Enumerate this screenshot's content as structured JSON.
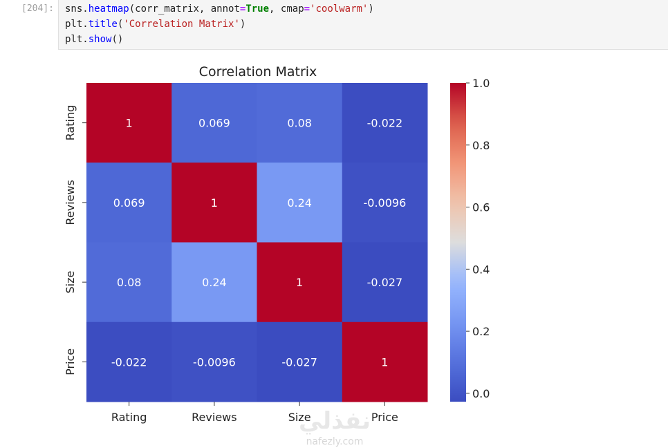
{
  "prompt": "[204]:",
  "code": {
    "line1": {
      "a": "sns.",
      "b": "heatmap",
      "c": "(corr_matrix, annot",
      "d": "=",
      "e": "True",
      "f": ", cmap",
      "g": "=",
      "h": "'coolwarm'",
      "i": ")"
    },
    "line2": {
      "a": "plt.",
      "b": "title",
      "c": "(",
      "d": "'Correlation Matrix'",
      "e": ")"
    },
    "line3": {
      "a": "plt.",
      "b": "show",
      "c": "()"
    }
  },
  "watermark": {
    "logo_text": "نفذلي",
    "url": "nafezly.com"
  },
  "chart_data": {
    "type": "heatmap",
    "title": "Correlation Matrix",
    "rows": [
      "Rating",
      "Reviews",
      "Size",
      "Price"
    ],
    "cols": [
      "Rating",
      "Reviews",
      "Size",
      "Price"
    ],
    "values": [
      [
        1,
        0.069,
        0.08,
        -0.022
      ],
      [
        0.069,
        1,
        0.24,
        -0.0096
      ],
      [
        0.08,
        0.24,
        1,
        -0.027
      ],
      [
        -0.022,
        -0.0096,
        -0.027,
        1
      ]
    ],
    "annotations": [
      [
        "1",
        "0.069",
        "0.08",
        "-0.022"
      ],
      [
        "0.069",
        "1",
        "0.24",
        "-0.0096"
      ],
      [
        "0.08",
        "0.24",
        "1",
        "-0.027"
      ],
      [
        "-0.022",
        "-0.0096",
        "-0.027",
        "1"
      ]
    ],
    "colormap": "coolwarm",
    "colorbar": {
      "min": -0.027,
      "max": 1.0,
      "ticks": [
        0.0,
        0.2,
        0.4,
        0.6,
        0.8,
        1.0
      ],
      "tick_labels": [
        "0.0",
        "0.2",
        "0.4",
        "0.6",
        "0.8",
        "1.0"
      ]
    }
  }
}
